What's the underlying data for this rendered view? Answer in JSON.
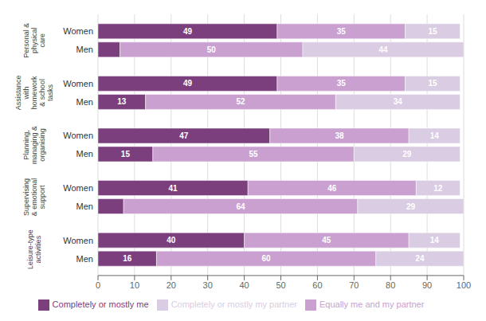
{
  "chart_data": {
    "type": "bar",
    "orientation": "horizontal",
    "stacked": true,
    "data_labels": true,
    "grid": true,
    "legend": "bottom",
    "xlim": [
      0,
      100
    ],
    "xticks": [
      0,
      10,
      20,
      30,
      40,
      50,
      60,
      70,
      80,
      90,
      100
    ],
    "categories": [
      "Personal &\nphysical\ncare",
      "Assistance\nwith\nhomework\n& school\ntasks",
      "Planning,\nmanaging &\norganising",
      "Supervising\n& emotional\nsupport",
      "Leisure-type\nactivities"
    ],
    "groups": [
      "Women",
      "Men"
    ],
    "series": [
      {
        "name": "Completely or mostly me",
        "color": "#7b3f7e",
        "values": {
          "Women": [
            49,
            49,
            47,
            41,
            40
          ],
          "Men": [
            6,
            13,
            15,
            7,
            16
          ]
        },
        "value_labels": {
          "Women": [
            "49",
            "49",
            "47",
            "41",
            "40"
          ],
          "Men": [
            null,
            "13",
            "15",
            null,
            "16"
          ]
        }
      },
      {
        "name": "Equally me and my partner",
        "color": "#c9a0d0",
        "values": {
          "Women": [
            35,
            35,
            38,
            46,
            45
          ],
          "Men": [
            50,
            52,
            55,
            64,
            60
          ]
        },
        "value_labels": {
          "Women": [
            "35",
            "35",
            "38",
            "46",
            "45"
          ],
          "Men": [
            "50",
            "52",
            "55",
            "64",
            "60"
          ]
        }
      },
      {
        "name": "Completely or mostly my partner",
        "color": "#d9cce3",
        "values": {
          "Women": [
            15,
            15,
            14,
            12,
            14
          ],
          "Men": [
            44,
            34,
            29,
            29,
            24
          ]
        },
        "value_labels": {
          "Women": [
            "15",
            "15",
            "14",
            "12",
            "14"
          ],
          "Men": [
            "44",
            "34",
            "29",
            "29",
            "24"
          ]
        }
      }
    ]
  }
}
